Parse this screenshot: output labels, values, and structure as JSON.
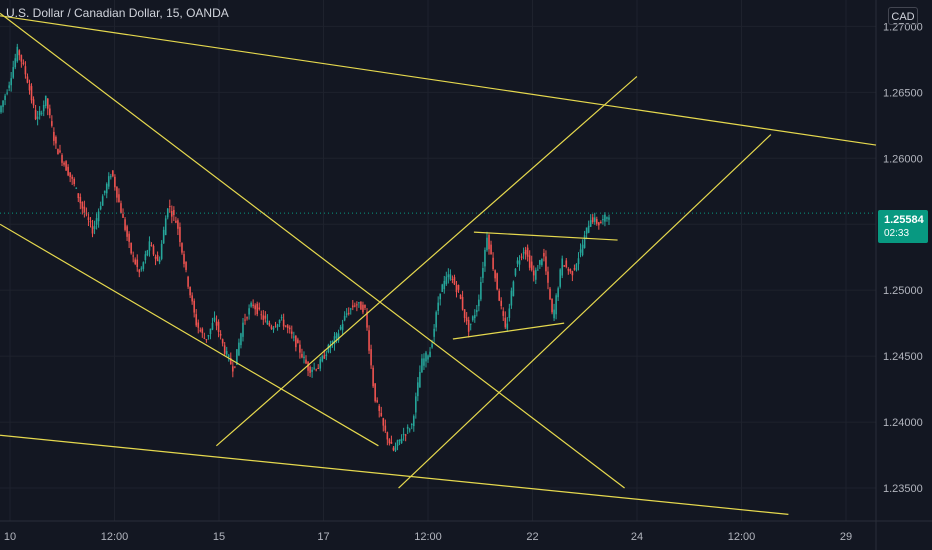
{
  "chart_data": {
    "type": "candlestick",
    "title": "U.S. Dollar / Canadian Dollar, 15, OANDA",
    "currency": "CAD",
    "ylim": [
      1.2325,
      1.272
    ],
    "y_ticks": [
      "1.27000",
      "1.26500",
      "1.26000",
      "1.25500",
      "1.25000",
      "1.24500",
      "1.24000",
      "1.23500"
    ],
    "x_ticks": [
      "10",
      "12:00",
      "15",
      "17",
      "12:00",
      "22",
      "24",
      "12:00",
      "29"
    ],
    "last_price": "1.25584",
    "countdown": "02:33",
    "price_path": [
      1.2635,
      1.2655,
      1.2683,
      1.266,
      1.2628,
      1.2645,
      1.261,
      1.2595,
      1.258,
      1.256,
      1.2545,
      1.257,
      1.259,
      1.256,
      1.253,
      1.2512,
      1.2535,
      1.252,
      1.2565,
      1.255,
      1.251,
      1.2475,
      1.2462,
      1.2478,
      1.2455,
      1.244,
      1.2475,
      1.249,
      1.248,
      1.2472,
      1.2478,
      1.2468,
      1.2455,
      1.244,
      1.2442,
      1.2455,
      1.2465,
      1.2482,
      1.249,
      1.2485,
      1.242,
      1.2395,
      1.2378,
      1.239,
      1.2398,
      1.2445,
      1.2455,
      1.25,
      1.2512,
      1.2498,
      1.247,
      1.2488,
      1.2542,
      1.2505,
      1.2468,
      1.2518,
      1.2532,
      1.251,
      1.2528,
      1.2478,
      1.2522,
      1.2512,
      1.253,
      1.2555,
      1.255,
      1.2558
    ],
    "trend_lines": [
      {
        "x1": 0.0,
        "y1": 1.2708,
        "x2": 1.0,
        "y2": 1.261
      },
      {
        "x1": 0.0,
        "y1": 1.271,
        "x2": 0.713,
        "y2": 1.235
      },
      {
        "x1": 0.0,
        "y1": 1.255,
        "x2": 0.432,
        "y2": 1.2382
      },
      {
        "x1": 0.0,
        "y1": 1.239,
        "x2": 0.9,
        "y2": 1.233
      },
      {
        "x1": 0.247,
        "y1": 1.2382,
        "x2": 0.727,
        "y2": 1.2662
      },
      {
        "x1": 0.455,
        "y1": 1.235,
        "x2": 0.88,
        "y2": 1.2618
      },
      {
        "x1": 0.541,
        "y1": 1.2544,
        "x2": 0.705,
        "y2": 1.2538
      },
      {
        "x1": 0.517,
        "y1": 1.2463,
        "x2": 0.644,
        "y2": 1.2475
      }
    ],
    "grid": true
  }
}
